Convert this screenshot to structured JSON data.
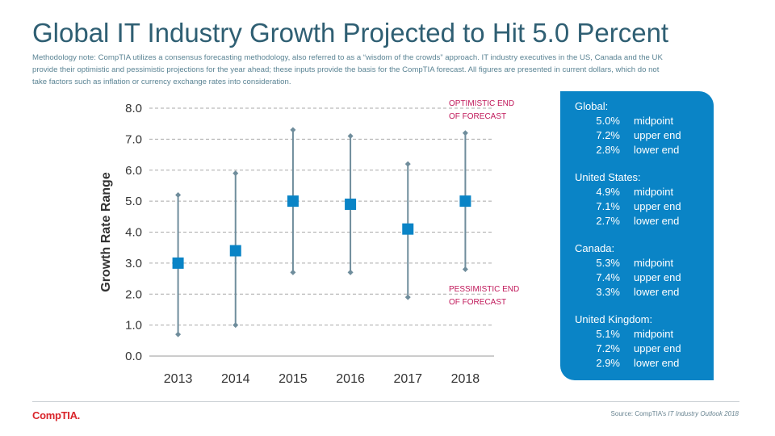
{
  "title": "Global IT Industry Growth Projected to Hit 5.0 Percent",
  "methodology": "Methodology note: CompTIA utilizes a consensus forecasting methodology, also referred to as a “wisdom of the crowds” approach. IT industry executives in the US, Canada and the UK provide their optimistic and pessimistic projections for the year ahead; these inputs provide the basis for the CompTIA forecast. All figures are presented in current dollars, which do not take factors such as inflation or currency exchange rates into consideration.",
  "chart_data": {
    "type": "range",
    "ylabel": "Growth Rate Range",
    "ylim": [
      0,
      8
    ],
    "yticks": [
      "0.0",
      "1.0",
      "2.0",
      "3.0",
      "4.0",
      "5.0",
      "6.0",
      "7.0",
      "8.0"
    ],
    "categories": [
      "2013",
      "2014",
      "2015",
      "2016",
      "2017",
      "2018"
    ],
    "midpoint": [
      3.0,
      3.4,
      5.0,
      4.9,
      4.1,
      5.0
    ],
    "upper": [
      5.2,
      5.9,
      7.3,
      7.1,
      6.2,
      7.2
    ],
    "lower": [
      0.7,
      1.0,
      2.7,
      2.7,
      1.9,
      2.8
    ],
    "grid": true,
    "annotations": {
      "optimistic": [
        "OPTIMISTIC END",
        "OF FORECAST"
      ],
      "pessimistic": [
        "PESSIMISTIC END",
        "OF FORECAST"
      ]
    },
    "colors": {
      "marker": "#0a84c6",
      "whisker": "#6f8d9c",
      "annotation": "#c0185a",
      "grid": "#a9a9a9",
      "axis_text": "#333333"
    }
  },
  "panel": {
    "regions": [
      {
        "name": "Global:",
        "rows": [
          {
            "value": "5.0%",
            "label": "midpoint"
          },
          {
            "value": "7.2%",
            "label": "upper end"
          },
          {
            "value": "2.8%",
            "label": "lower end"
          }
        ]
      },
      {
        "name": "United States:",
        "rows": [
          {
            "value": "4.9%",
            "label": "midpoint"
          },
          {
            "value": "7.1%",
            "label": "upper end"
          },
          {
            "value": "2.7%",
            "label": "lower end"
          }
        ]
      },
      {
        "name": "Canada:",
        "rows": [
          {
            "value": "5.3%",
            "label": "midpoint"
          },
          {
            "value": "7.4%",
            "label": "upper end"
          },
          {
            "value": "3.3%",
            "label": "lower end"
          }
        ]
      },
      {
        "name": "United Kingdom:",
        "rows": [
          {
            "value": "5.1%",
            "label": "midpoint"
          },
          {
            "value": "7.2%",
            "label": "upper end"
          },
          {
            "value": "2.9%",
            "label": "lower end"
          }
        ]
      }
    ]
  },
  "footer": {
    "logo": "CompTIA.",
    "source_prefix": "Source: CompTIA’s ",
    "source_title": "IT Industry Outlook 2018"
  }
}
